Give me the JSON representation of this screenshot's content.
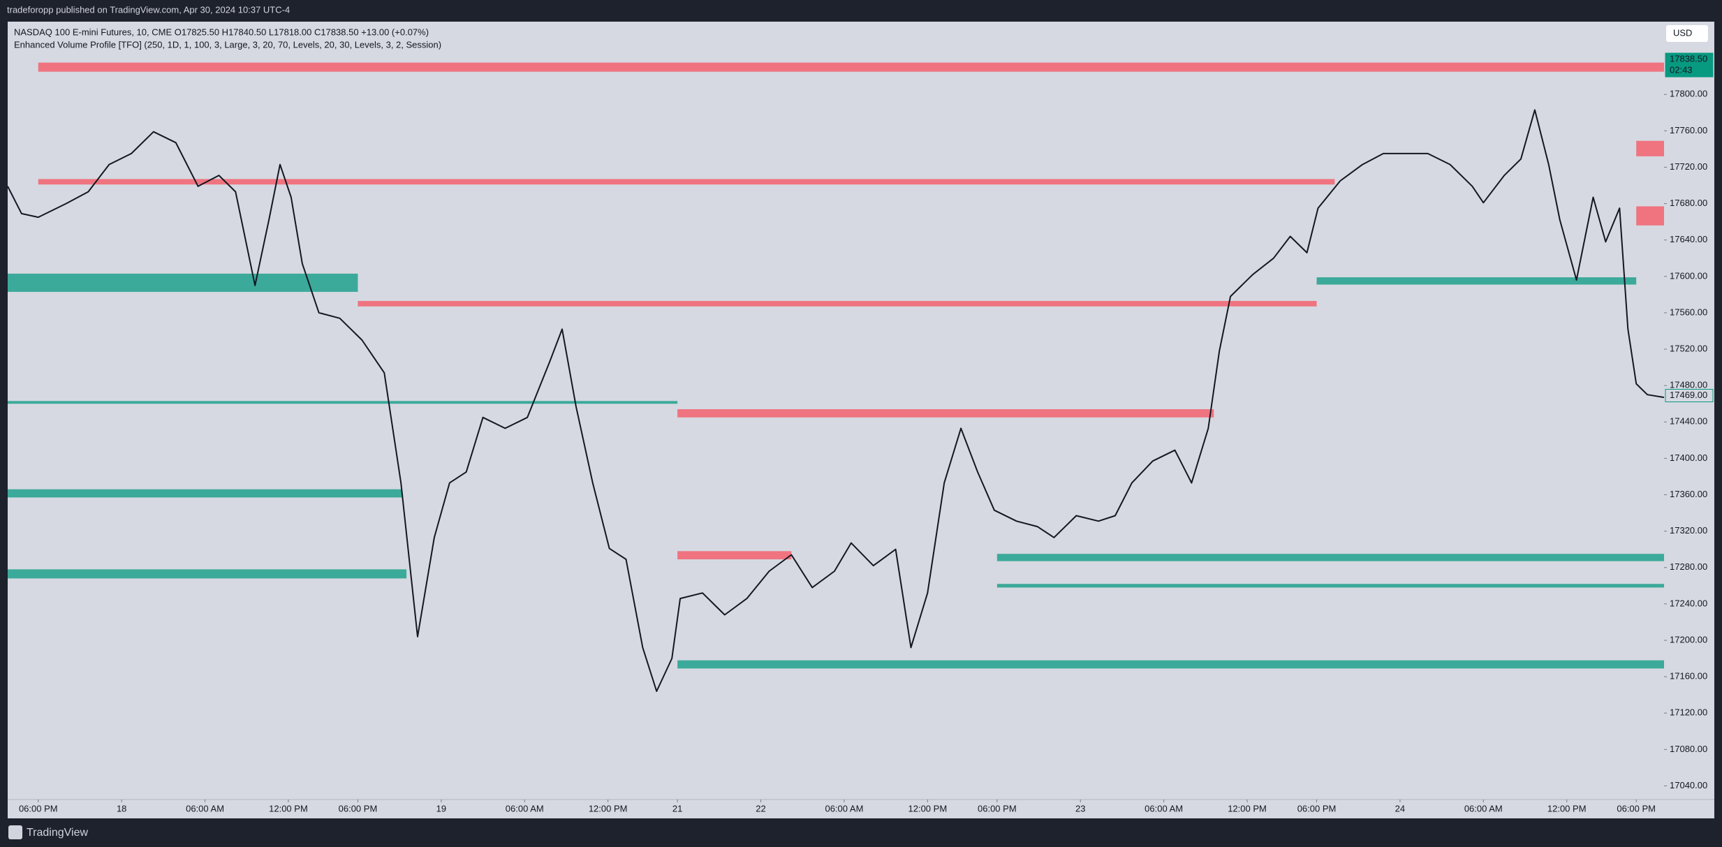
{
  "header": {
    "publisher": "tradeforopp published on TradingView.com, Apr 30, 2024 10:37 UTC-4",
    "footer": "TradingView",
    "currency": "USD"
  },
  "chart_data": {
    "type": "line",
    "legend_lines": [
      "NASDAQ 100 E-mini Futures, 10, CME  O17825.50  H17840.50  L17818.00  C17838.50  +13.00 (+0.07%)",
      "Enhanced Volume Profile [TFO] (250, 1D, 1, 100, 3, Large, 3, 20, 70, Levels, 20, 30, Levels, 3, 2, Session)"
    ],
    "color": "#131722",
    "x": [
      -2.2,
      -1.2,
      0,
      2.0,
      3.6,
      5.1,
      6.7,
      8.3,
      9.9,
      11.5,
      13.0,
      14.2,
      15.6,
      16.6,
      17.4,
      18.2,
      19.0,
      20.2,
      21.7,
      23.3,
      24.9,
      26.1,
      27.3,
      28.5,
      29.6,
      30.8,
      32.0,
      33.6,
      35.2,
      36.8,
      37.7,
      38.7,
      39.9,
      41.1,
      42.3,
      43.5,
      44.5,
      45.6,
      46.2,
      47.8,
      49.4,
      51.0,
      52.6,
      54.2,
      55.7,
      57.3,
      58.5,
      60.1,
      61.7,
      62.8,
      64.0,
      65.2,
      66.4,
      67.6,
      68.8,
      70.4,
      71.9,
      73.1,
      74.7,
      76.3,
      77.5,
      78.7,
      80.2,
      81.8,
      83.0,
      84.2,
      85.0,
      85.8,
      87.4,
      88.9,
      90.1,
      91.3,
      92.1,
      93.7,
      95.3,
      96.8,
      98.4,
      100.0,
      101.6,
      103.2,
      104.0,
      105.5,
      106.7,
      107.7,
      108.7,
      109.5,
      110.7,
      111.9,
      112.8,
      113.8,
      114.4,
      115.0,
      115.8,
      117.0
    ],
    "values": [
      17699,
      17669,
      17665,
      17680,
      17693,
      17723,
      17735,
      17759,
      17747,
      17699,
      17711,
      17693,
      17590,
      17662,
      17723,
      17687,
      17614,
      17560,
      17554,
      17530,
      17494,
      17373,
      17204,
      17313,
      17373,
      17385,
      17445,
      17433,
      17445,
      17506,
      17542,
      17457,
      17373,
      17301,
      17289,
      17192,
      17144,
      17180,
      17246,
      17252,
      17228,
      17246,
      17276,
      17294,
      17258,
      17276,
      17307,
      17282,
      17300,
      17192,
      17252,
      17373,
      17433,
      17385,
      17343,
      17331,
      17325,
      17313,
      17337,
      17331,
      17337,
      17373,
      17397,
      17409,
      17373,
      17433,
      17518,
      17578,
      17602,
      17620,
      17644,
      17626,
      17675,
      17705,
      17723,
      17735,
      17735,
      17735,
      17723,
      17699,
      17681,
      17711,
      17729,
      17783,
      17723,
      17662,
      17596,
      17687,
      17638,
      17675,
      17542,
      17482,
      17470,
      17467
    ],
    "xlim": [
      -2.2,
      117
    ],
    "ylim": [
      17025,
      17880
    ],
    "xticks": [
      {
        "value": 0,
        "label": "06:00 PM"
      },
      {
        "value": 6,
        "label": "18"
      },
      {
        "value": 12,
        "label": "06:00 AM"
      },
      {
        "value": 18,
        "label": "12:00 PM"
      },
      {
        "value": 23,
        "label": "06:00 PM"
      },
      {
        "value": 29,
        "label": "19"
      },
      {
        "value": 35,
        "label": "06:00 AM"
      },
      {
        "value": 41,
        "label": "12:00 PM"
      },
      {
        "value": 46,
        "label": "21"
      },
      {
        "value": 52,
        "label": "22"
      },
      {
        "value": 58,
        "label": "06:00 AM"
      },
      {
        "value": 64,
        "label": "12:00 PM"
      },
      {
        "value": 69,
        "label": "06:00 PM"
      },
      {
        "value": 75,
        "label": "23"
      },
      {
        "value": 81,
        "label": "06:00 AM"
      },
      {
        "value": 87,
        "label": "12:00 PM"
      },
      {
        "value": 92,
        "label": "06:00 PM"
      },
      {
        "value": 98,
        "label": "24"
      },
      {
        "value": 104,
        "label": "06:00 AM"
      },
      {
        "value": 110,
        "label": "12:00 PM"
      },
      {
        "value": 115,
        "label": "06:00 PM"
      }
    ],
    "yticks": [
      {
        "value": 17040,
        "label": "17040.00"
      },
      {
        "value": 17080,
        "label": "17080.00"
      },
      {
        "value": 17120,
        "label": "17120.00"
      },
      {
        "value": 17160,
        "label": "17160.00"
      },
      {
        "value": 17200,
        "label": "17200.00"
      },
      {
        "value": 17240,
        "label": "17240.00"
      },
      {
        "value": 17280,
        "label": "17280.00"
      },
      {
        "value": 17320,
        "label": "17320.00"
      },
      {
        "value": 17360,
        "label": "17360.00"
      },
      {
        "value": 17400,
        "label": "17400.00"
      },
      {
        "value": 17440,
        "label": "17440.00"
      },
      {
        "value": 17480,
        "label": "17480.00"
      },
      {
        "value": 17520,
        "label": "17520.00"
      },
      {
        "value": 17560,
        "label": "17560.00"
      },
      {
        "value": 17600,
        "label": "17600.00"
      },
      {
        "value": 17640,
        "label": "17640.00"
      },
      {
        "value": 17680,
        "label": "17680.00"
      },
      {
        "value": 17720,
        "label": "17720.00"
      },
      {
        "value": 17760,
        "label": "17760.00"
      },
      {
        "value": 17800,
        "label": "17800.00"
      }
    ],
    "zones": [
      {
        "x": [
          0,
          117
        ],
        "y": [
          17825,
          17835
        ],
        "color": "#f7525f"
      },
      {
        "x": [
          0,
          93.3
        ],
        "y": [
          17701,
          17707
        ],
        "color": "#f7525f"
      },
      {
        "x": [
          -2.2,
          23
        ],
        "y": [
          17583,
          17603
        ],
        "color": "#089981"
      },
      {
        "x": [
          23,
          92
        ],
        "y": [
          17567,
          17573
        ],
        "color": "#f7525f"
      },
      {
        "x": [
          -2.2,
          46
        ],
        "y": [
          17460,
          17463
        ],
        "color": "#089981"
      },
      {
        "x": [
          -2.2,
          26.2
        ],
        "y": [
          17357,
          17366
        ],
        "color": "#089981"
      },
      {
        "x": [
          -2.2,
          26.5
        ],
        "y": [
          17268,
          17278
        ],
        "color": "#089981"
      },
      {
        "x": [
          46,
          84.6
        ],
        "y": [
          17445,
          17454
        ],
        "color": "#f7525f"
      },
      {
        "x": [
          46,
          54.2
        ],
        "y": [
          17289,
          17298
        ],
        "color": "#f7525f"
      },
      {
        "x": [
          46,
          117
        ],
        "y": [
          17169,
          17178
        ],
        "color": "#089981"
      },
      {
        "x": [
          69,
          117
        ],
        "y": [
          17287,
          17295
        ],
        "color": "#089981"
      },
      {
        "x": [
          69,
          117
        ],
        "y": [
          17258,
          17262
        ],
        "color": "#089981"
      },
      {
        "x": [
          92,
          115
        ],
        "y": [
          17591,
          17599
        ],
        "color": "#089981"
      },
      {
        "x": [
          115,
          117
        ],
        "y": [
          17732,
          17749
        ],
        "color": "#f7525f"
      },
      {
        "x": [
          115,
          117
        ],
        "y": [
          17656,
          17677
        ],
        "color": "#f7525f"
      }
    ],
    "price_tags": [
      {
        "value": 17838.5,
        "label": "17838.50",
        "sub": "02:43",
        "color": "#089981"
      },
      {
        "value": 17469,
        "label": "17469.00",
        "color": "#d6d9e1"
      }
    ]
  }
}
